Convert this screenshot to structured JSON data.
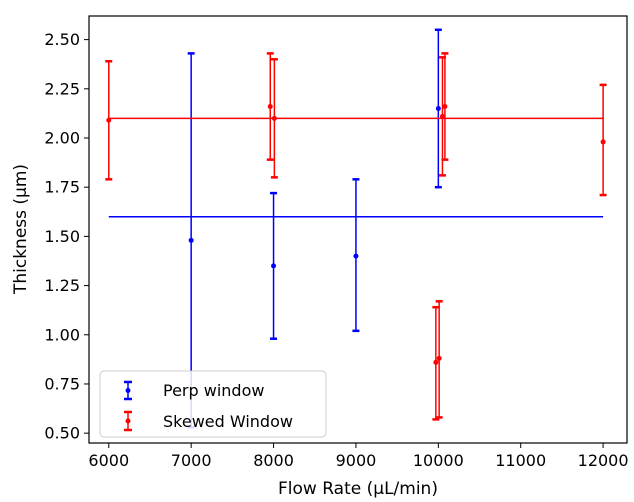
{
  "chart_data": {
    "type": "scatter",
    "xlabel": "Flow Rate (μL/min)",
    "ylabel": "Thickness (μm)",
    "xlim": [
      5760,
      12290
    ],
    "ylim": [
      0.45,
      2.62
    ],
    "xticks": [
      6000,
      7000,
      8000,
      9000,
      10000,
      11000,
      12000
    ],
    "yticks": [
      0.5,
      0.75,
      1.0,
      1.25,
      1.5,
      1.75,
      2.0,
      2.25,
      2.5
    ],
    "grid": false,
    "legend_position": "lower-left",
    "series": [
      {
        "name": "Perp window",
        "color": "#0000ff",
        "points": [
          {
            "x": 7000,
            "y": 1.48,
            "low": 0.53,
            "high": 2.43
          },
          {
            "x": 8000,
            "y": 1.35,
            "low": 0.98,
            "high": 1.72
          },
          {
            "x": 9000,
            "y": 1.4,
            "low": 1.02,
            "high": 1.79
          },
          {
            "x": 10000,
            "y": 2.15,
            "low": 1.75,
            "high": 2.55
          }
        ],
        "mean_line": {
          "x": [
            6000,
            12000
          ],
          "y": 1.6
        }
      },
      {
        "name": "Skewed Window",
        "color": "#ff0000",
        "points": [
          {
            "x": 6000,
            "y": 2.09,
            "low": 1.79,
            "high": 2.39
          },
          {
            "x": 7960,
            "y": 2.16,
            "low": 1.89,
            "high": 2.43
          },
          {
            "x": 8010,
            "y": 2.1,
            "low": 1.8,
            "high": 2.4
          },
          {
            "x": 9970,
            "y": 0.86,
            "low": 0.57,
            "high": 1.14
          },
          {
            "x": 10010,
            "y": 0.88,
            "low": 0.58,
            "high": 1.17
          },
          {
            "x": 10050,
            "y": 2.11,
            "low": 1.81,
            "high": 2.41
          },
          {
            "x": 10080,
            "y": 2.16,
            "low": 1.89,
            "high": 2.43
          },
          {
            "x": 12000,
            "y": 1.98,
            "low": 1.71,
            "high": 2.27
          }
        ],
        "mean_line": {
          "x": [
            6000,
            12000
          ],
          "y": 2.1
        }
      }
    ]
  }
}
